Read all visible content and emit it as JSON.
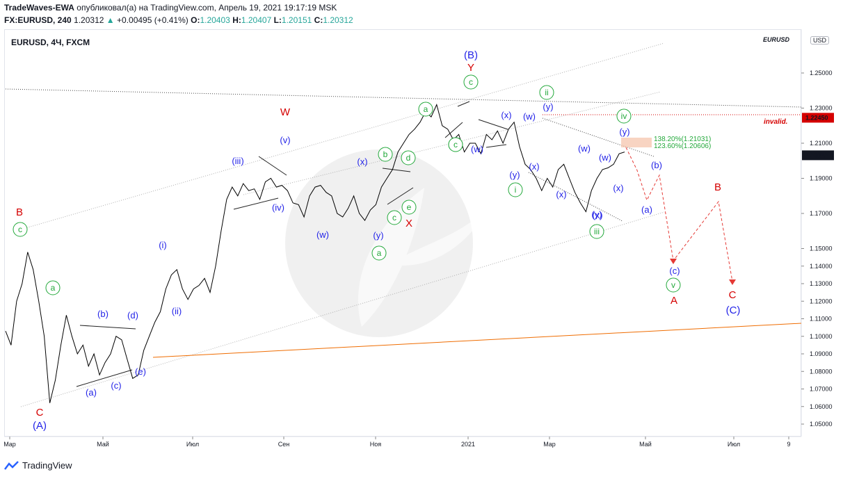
{
  "header": {
    "author": "TradeWaves-EWA",
    "published_text": "опубликовал(а) на TradingView.com, Апрель 19, 2021 19:17:19 MSK",
    "symbol_line": "FX:EURUSD, 240",
    "last_price": "1.20312",
    "change": "+0.00495 (+0.41%)",
    "o_label": "O:",
    "o_value": "1.20403",
    "h_label": "H:",
    "h_value": "1.20407",
    "l_label": "L:",
    "l_value": "1.20151",
    "c_label": "C:",
    "c_value": "1.20312"
  },
  "chart_title": "EURUSD, 4Ч, FXCM",
  "pair_tag": "EURUSD",
  "currency_button": "USD",
  "footer": {
    "brand": "TradingView"
  },
  "colors": {
    "up": "#26a69a",
    "red": "#d50000",
    "blue": "#2424e8",
    "green": "#22a83a",
    "orange": "#ef6c00"
  },
  "chart_data": {
    "type": "line",
    "title": "",
    "x_ticks": [
      "Мар",
      "Май",
      "Июл",
      "Сен",
      "Ноя",
      "2021",
      "Мар",
      "Май",
      "Июл",
      "9"
    ],
    "y_ticks": [
      "1.05000",
      "1.06000",
      "1.07000",
      "1.08000",
      "1.09000",
      "1.10000",
      "1.11000",
      "1.12000",
      "1.13000",
      "1.14000",
      "1.15000",
      "1.17000",
      "1.19000",
      "1.21000",
      "1.23000",
      "1.25000"
    ],
    "ylim": [
      1.045,
      1.265
    ],
    "price_markers": [
      {
        "text": "1.22450",
        "kind": "invalidation"
      },
      {
        "text": "1.20312",
        "kind": "last"
      }
    ],
    "invalid_label": "invalid.",
    "fib_labels": [
      "138.20%(1.21031)",
      "123.60%(1.20606)"
    ],
    "series": [
      {
        "x": [
          0,
          8,
          16,
          24,
          32,
          40,
          48,
          56,
          64,
          72,
          80,
          88,
          96,
          104,
          112,
          120,
          128,
          136,
          144,
          152,
          160,
          168,
          176,
          184,
          192,
          200,
          208,
          216,
          224,
          232,
          240,
          248,
          256,
          264,
          272,
          280,
          288,
          296,
          304,
          312,
          320,
          328,
          336,
          344,
          352,
          360,
          368,
          376,
          384,
          392,
          400,
          408,
          416,
          424,
          432,
          440,
          448,
          456,
          464,
          472,
          480,
          488,
          496,
          504,
          512,
          520,
          528,
          536,
          544,
          552,
          560,
          568,
          576,
          584,
          592,
          600,
          608,
          616,
          624,
          632,
          640,
          648,
          656,
          664,
          672,
          680,
          688,
          696,
          704,
          712,
          720,
          728,
          736,
          744,
          752,
          760,
          768,
          776,
          784,
          792,
          800,
          808,
          816,
          824,
          832,
          840,
          848,
          856,
          864,
          872,
          880,
          888,
          896
        ],
        "y": [
          1.103,
          1.095,
          1.12,
          1.13,
          1.148,
          1.138,
          1.12,
          1.1,
          1.062,
          1.075,
          1.095,
          1.112,
          1.1,
          1.09,
          1.095,
          1.083,
          1.09,
          1.078,
          1.085,
          1.09,
          1.1,
          1.098,
          1.087,
          1.076,
          1.078,
          1.092,
          1.1,
          1.108,
          1.114,
          1.127,
          1.135,
          1.138,
          1.127,
          1.121,
          1.127,
          1.129,
          1.133,
          1.125,
          1.14,
          1.16,
          1.178,
          1.185,
          1.18,
          1.187,
          1.183,
          1.184,
          1.178,
          1.188,
          1.19,
          1.185,
          1.186,
          1.183,
          1.176,
          1.175,
          1.168,
          1.18,
          1.185,
          1.186,
          1.182,
          1.18,
          1.17,
          1.168,
          1.173,
          1.18,
          1.17,
          1.166,
          1.172,
          1.175,
          1.185,
          1.19,
          1.195,
          1.205,
          1.21,
          1.215,
          1.218,
          1.222,
          1.228,
          1.225,
          1.232,
          1.22,
          1.218,
          1.212,
          1.215,
          1.205,
          1.21,
          1.21,
          1.204,
          1.215,
          1.212,
          1.217,
          1.21,
          1.218,
          1.222,
          1.208,
          1.198,
          1.195,
          1.19,
          1.183,
          1.19,
          1.185,
          1.195,
          1.198,
          1.19,
          1.182,
          1.176,
          1.171,
          1.183,
          1.19,
          1.195,
          1.196,
          1.198,
          1.204,
          1.205
        ]
      }
    ],
    "wave_labels_red": [
      "B",
      "C",
      "W",
      "Y",
      "X",
      "A",
      "B",
      "C"
    ],
    "wave_labels_blue": [
      "(A)",
      "(B)",
      "(C)",
      "(a)",
      "(b)",
      "(c)",
      "(d)",
      "(e)",
      "(i)",
      "(ii)",
      "(iii)",
      "(iv)",
      "(v)",
      "(w)",
      "(x)",
      "(y)",
      "(w)",
      "(x)",
      "(y)",
      "(x)",
      "(w)",
      "(y)",
      "(x)",
      "(w)",
      "(x)",
      "(y)",
      "(w)",
      "(x)",
      "(y)",
      "(a)",
      "(b)",
      "(c)"
    ],
    "wave_labels_green": [
      "c",
      "a",
      "b",
      "c",
      "a",
      "b",
      "c",
      "d",
      "e",
      "a",
      "c",
      "i",
      "ii",
      "iii",
      "iv",
      "v"
    ]
  }
}
